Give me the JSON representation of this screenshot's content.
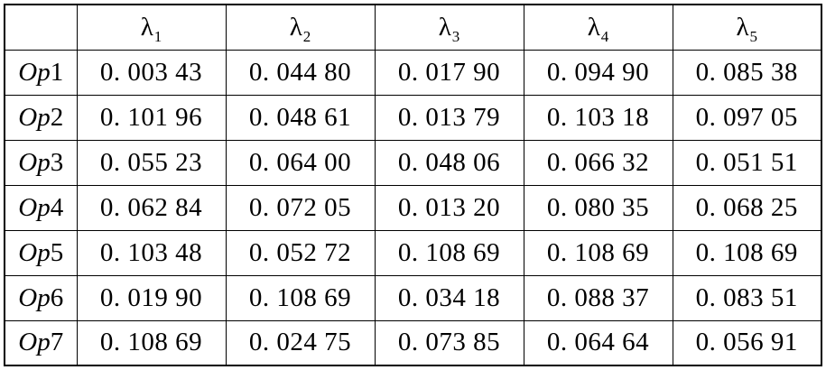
{
  "header": {
    "corner": "",
    "columns": [
      {
        "symbol": "λ",
        "sub": "1"
      },
      {
        "symbol": "λ",
        "sub": "2"
      },
      {
        "symbol": "λ",
        "sub": "3"
      },
      {
        "symbol": "λ",
        "sub": "4"
      },
      {
        "symbol": "λ",
        "sub": "5"
      }
    ]
  },
  "rows": [
    {
      "prefix": "Op",
      "index": "1",
      "values": [
        "0. 003 43",
        "0. 044 80",
        "0. 017 90",
        "0. 094 90",
        "0. 085 38"
      ]
    },
    {
      "prefix": "Op",
      "index": "2",
      "values": [
        "0. 101 96",
        "0. 048 61",
        "0. 013 79",
        "0. 103 18",
        "0. 097 05"
      ]
    },
    {
      "prefix": "Op",
      "index": "3",
      "values": [
        "0. 055 23",
        "0. 064 00",
        "0. 048 06",
        "0. 066 32",
        "0. 051 51"
      ]
    },
    {
      "prefix": "Op",
      "index": "4",
      "values": [
        "0. 062 84",
        "0. 072 05",
        "0. 013 20",
        "0. 080 35",
        "0. 068 25"
      ]
    },
    {
      "prefix": "Op",
      "index": "5",
      "values": [
        "0. 103 48",
        "0. 052 72",
        "0. 108 69",
        "0. 108 69",
        "0. 108 69"
      ]
    },
    {
      "prefix": "Op",
      "index": "6",
      "values": [
        "0. 019 90",
        "0. 108 69",
        "0. 034 18",
        "0. 088 37",
        "0. 083 51"
      ]
    },
    {
      "prefix": "Op",
      "index": "7",
      "values": [
        "0. 108 69",
        "0. 024 75",
        "0. 073 85",
        "0. 064 64",
        "0. 056 91"
      ]
    }
  ]
}
